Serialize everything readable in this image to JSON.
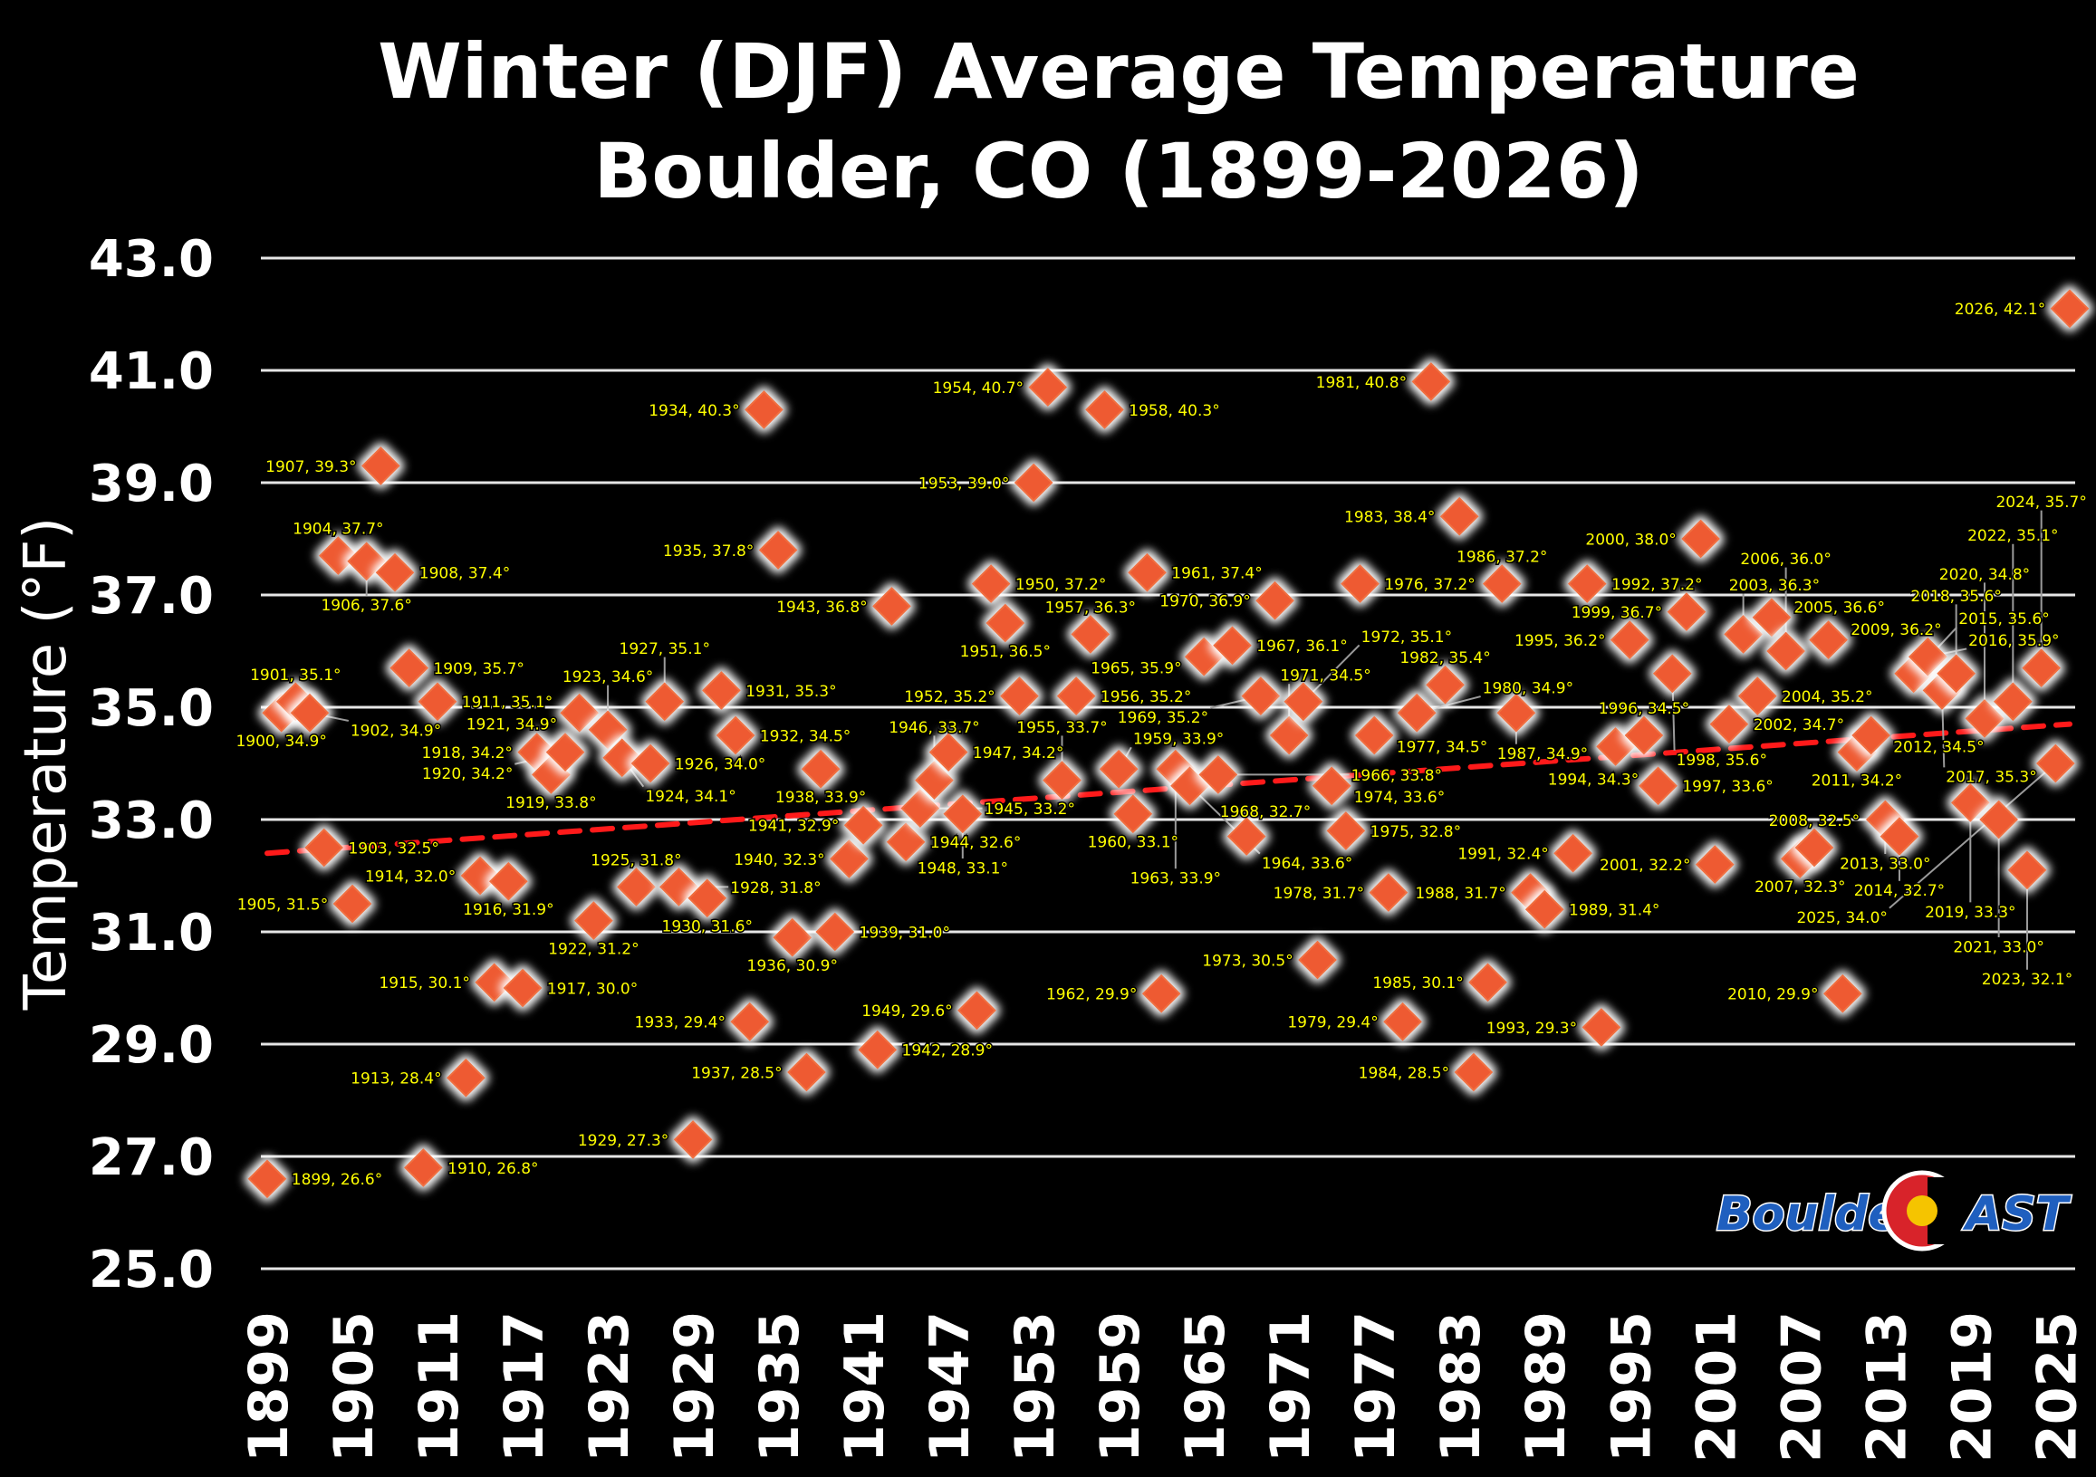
{
  "chart_data": {
    "type": "scatter",
    "title": [
      "Winter (DJF) Average Temperature",
      "Boulder, CO (1899-2026)"
    ],
    "xlabel": "",
    "ylabel": "Temperature (°F)",
    "xlim": [
      1899,
      2026
    ],
    "ylim": [
      25,
      43
    ],
    "yticks": [
      "25.0",
      "27.0",
      "29.0",
      "31.0",
      "33.0",
      "35.0",
      "37.0",
      "39.0",
      "41.0",
      "43.0"
    ],
    "xticks": [
      "1899",
      "1905",
      "1911",
      "1917",
      "1923",
      "1929",
      "1935",
      "1941",
      "1947",
      "1953",
      "1959",
      "1965",
      "1971",
      "1977",
      "1983",
      "1989",
      "1995",
      "2001",
      "2007",
      "2013",
      "2019",
      "2025"
    ],
    "grid": "horizontal",
    "trendline": {
      "start": [
        1899,
        32.4
      ],
      "end": [
        2026,
        34.7
      ],
      "color": "#ff1a1a",
      "style": "dashed"
    },
    "marker_color": "#ee5a33",
    "label_color": "#ffff00",
    "points": [
      [
        1899,
        26.6
      ],
      [
        1900,
        34.9
      ],
      [
        1901,
        35.1
      ],
      [
        1902,
        34.9
      ],
      [
        1903,
        32.5
      ],
      [
        1904,
        37.7
      ],
      [
        1905,
        31.5
      ],
      [
        1906,
        37.6
      ],
      [
        1907,
        39.3
      ],
      [
        1908,
        37.4
      ],
      [
        1909,
        35.7
      ],
      [
        1910,
        26.8
      ],
      [
        1911,
        35.1
      ],
      [
        1913,
        28.4
      ],
      [
        1914,
        32.0
      ],
      [
        1915,
        30.1
      ],
      [
        1916,
        31.9
      ],
      [
        1917,
        30.0
      ],
      [
        1918,
        34.2
      ],
      [
        1919,
        33.8
      ],
      [
        1920,
        34.2
      ],
      [
        1921,
        34.9
      ],
      [
        1922,
        31.2
      ],
      [
        1923,
        34.6
      ],
      [
        1924,
        34.1
      ],
      [
        1925,
        31.8
      ],
      [
        1926,
        34.0
      ],
      [
        1927,
        35.1
      ],
      [
        1928,
        31.8
      ],
      [
        1929,
        27.3
      ],
      [
        1930,
        31.6
      ],
      [
        1931,
        35.3
      ],
      [
        1932,
        34.5
      ],
      [
        1933,
        29.4
      ],
      [
        1934,
        40.3
      ],
      [
        1935,
        37.8
      ],
      [
        1936,
        30.9
      ],
      [
        1937,
        28.5
      ],
      [
        1938,
        33.9
      ],
      [
        1939,
        31.0
      ],
      [
        1940,
        32.3
      ],
      [
        1941,
        32.9
      ],
      [
        1942,
        28.9
      ],
      [
        1943,
        36.8
      ],
      [
        1944,
        32.6
      ],
      [
        1945,
        33.2
      ],
      [
        1946,
        33.7
      ],
      [
        1947,
        34.2
      ],
      [
        1948,
        33.1
      ],
      [
        1949,
        29.6
      ],
      [
        1950,
        37.2
      ],
      [
        1951,
        36.5
      ],
      [
        1952,
        35.2
      ],
      [
        1953,
        39.0
      ],
      [
        1954,
        40.7
      ],
      [
        1955,
        33.7
      ],
      [
        1956,
        35.2
      ],
      [
        1957,
        36.3
      ],
      [
        1958,
        40.3
      ],
      [
        1959,
        33.9
      ],
      [
        1960,
        33.1
      ],
      [
        1961,
        37.4
      ],
      [
        1962,
        29.9
      ],
      [
        1963,
        33.9
      ],
      [
        1964,
        33.6
      ],
      [
        1965,
        35.9
      ],
      [
        1966,
        33.8
      ],
      [
        1967,
        36.1
      ],
      [
        1968,
        32.7
      ],
      [
        1969,
        35.2
      ],
      [
        1970,
        36.9
      ],
      [
        1971,
        34.5
      ],
      [
        1972,
        35.1
      ],
      [
        1973,
        30.5
      ],
      [
        1974,
        33.6
      ],
      [
        1975,
        32.8
      ],
      [
        1976,
        37.2
      ],
      [
        1977,
        34.5
      ],
      [
        1978,
        31.7
      ],
      [
        1979,
        29.4
      ],
      [
        1980,
        34.9
      ],
      [
        1981,
        40.8
      ],
      [
        1982,
        35.4
      ],
      [
        1983,
        38.4
      ],
      [
        1984,
        28.5
      ],
      [
        1985,
        30.1
      ],
      [
        1986,
        37.2
      ],
      [
        1987,
        34.9
      ],
      [
        1988,
        31.7
      ],
      [
        1989,
        31.4
      ],
      [
        1991,
        32.4
      ],
      [
        1992,
        37.2
      ],
      [
        1993,
        29.3
      ],
      [
        1994,
        34.3
      ],
      [
        1995,
        36.2
      ],
      [
        1996,
        34.5
      ],
      [
        1997,
        33.6
      ],
      [
        1998,
        35.6
      ],
      [
        1999,
        36.7
      ],
      [
        2000,
        38.0
      ],
      [
        2001,
        32.2
      ],
      [
        2002,
        34.7
      ],
      [
        2003,
        36.3
      ],
      [
        2004,
        35.2
      ],
      [
        2005,
        36.6
      ],
      [
        2006,
        36.0
      ],
      [
        2007,
        32.3
      ],
      [
        2008,
        32.5
      ],
      [
        2009,
        36.2
      ],
      [
        2010,
        29.9
      ],
      [
        2011,
        34.2
      ],
      [
        2012,
        34.5
      ],
      [
        2013,
        33.0
      ],
      [
        2014,
        32.7
      ],
      [
        2015,
        35.6
      ],
      [
        2016,
        35.9
      ],
      [
        2017,
        35.3
      ],
      [
        2018,
        35.6
      ],
      [
        2019,
        33.3
      ],
      [
        2020,
        34.8
      ],
      [
        2021,
        33.0
      ],
      [
        2022,
        35.1
      ],
      [
        2023,
        32.1
      ],
      [
        2024,
        35.7
      ],
      [
        2025,
        34.0
      ],
      [
        2026,
        42.1
      ]
    ]
  },
  "logo": {
    "text_left": "Boulder",
    "text_right": "AST",
    "colors": {
      "blue": "#1f5fbf",
      "red": "#d8232a",
      "gold": "#f5c400"
    }
  }
}
